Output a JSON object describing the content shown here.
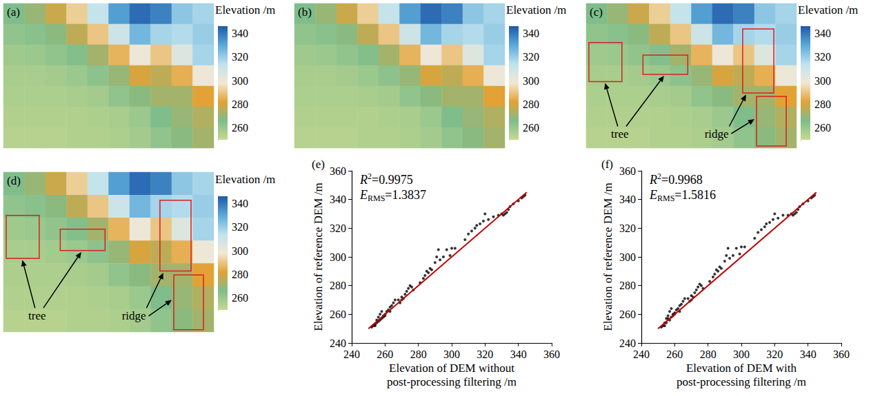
{
  "chart_data": [
    {
      "type": "heatmap",
      "panel": "(a)",
      "tick_labels": false,
      "cells": [
        [
          266,
          270,
          278,
          292,
          312,
          332,
          342,
          338,
          322,
          318
        ],
        [
          262,
          264,
          268,
          276,
          290,
          310,
          326,
          318,
          316,
          320
        ],
        [
          259,
          260,
          262,
          265,
          272,
          286,
          300,
          290,
          305,
          318
        ],
        [
          257,
          257,
          258,
          260,
          263,
          270,
          280,
          276,
          285,
          300
        ],
        [
          256,
          256,
          256,
          257,
          258,
          262,
          268,
          272,
          272,
          282
        ],
        [
          255,
          255,
          255,
          255,
          256,
          257,
          260,
          266,
          270,
          274
        ],
        [
          254,
          254,
          254,
          255,
          255,
          256,
          258,
          262,
          268,
          272
        ]
      ],
      "colorbar": {
        "title": "Elevation /m",
        "range": [
          250,
          346
        ],
        "ticks": [
          260,
          280,
          300,
          320,
          340
        ],
        "colors": [
          "#c8d98f",
          "#7fbd8b",
          "#e2a235",
          "#f2e8d2",
          "#bfe2ee",
          "#5aa9d8",
          "#1e58a8"
        ]
      }
    },
    {
      "type": "heatmap",
      "panel": "(b)",
      "tick_labels": false,
      "cells": [
        [
          266,
          270,
          278,
          292,
          312,
          332,
          342,
          338,
          322,
          318
        ],
        [
          262,
          264,
          268,
          276,
          290,
          310,
          326,
          318,
          316,
          320
        ],
        [
          259,
          260,
          262,
          265,
          272,
          286,
          300,
          290,
          305,
          318
        ],
        [
          257,
          257,
          258,
          260,
          263,
          270,
          280,
          276,
          285,
          300
        ],
        [
          256,
          256,
          256,
          257,
          258,
          262,
          268,
          272,
          272,
          282
        ],
        [
          255,
          255,
          255,
          255,
          256,
          257,
          260,
          266,
          270,
          274
        ],
        [
          254,
          254,
          254,
          255,
          255,
          256,
          258,
          262,
          268,
          272
        ]
      ],
      "colorbar": {
        "title": "Elevation /m",
        "range": [
          250,
          346
        ],
        "ticks": [
          260,
          280,
          300,
          320,
          340
        ],
        "colors": [
          "#c8d98f",
          "#7fbd8b",
          "#e2a235",
          "#f2e8d2",
          "#bfe2ee",
          "#5aa9d8",
          "#1e58a8"
        ]
      }
    },
    {
      "type": "heatmap",
      "panel": "(c)",
      "tick_labels": false,
      "cells": [
        [
          266,
          270,
          278,
          292,
          312,
          332,
          342,
          338,
          322,
          318
        ],
        [
          262,
          264,
          268,
          276,
          290,
          310,
          326,
          318,
          316,
          320
        ],
        [
          259,
          260,
          262,
          265,
          272,
          286,
          300,
          290,
          305,
          318
        ],
        [
          257,
          257,
          258,
          260,
          263,
          270,
          280,
          276,
          285,
          300
        ],
        [
          256,
          256,
          256,
          257,
          258,
          262,
          268,
          272,
          272,
          282
        ],
        [
          255,
          255,
          255,
          255,
          256,
          257,
          260,
          266,
          270,
          274
        ],
        [
          254,
          254,
          254,
          255,
          255,
          256,
          258,
          262,
          268,
          272
        ]
      ],
      "colorbar": {
        "title": "Elevation /m",
        "range": [
          250,
          346
        ],
        "ticks": [
          260,
          280,
          300,
          320,
          340
        ],
        "colors": [
          "#c8d98f",
          "#7fbd8b",
          "#e2a235",
          "#f2e8d2",
          "#bfe2ee",
          "#5aa9d8",
          "#1e58a8"
        ]
      },
      "annotations": [
        {
          "text": "tree"
        },
        {
          "text": "ridge"
        }
      ]
    },
    {
      "type": "heatmap",
      "panel": "(d)",
      "tick_labels": false,
      "cells": [
        [
          266,
          270,
          278,
          292,
          312,
          332,
          342,
          338,
          322,
          318
        ],
        [
          262,
          264,
          268,
          276,
          290,
          310,
          326,
          318,
          316,
          320
        ],
        [
          259,
          260,
          262,
          265,
          272,
          286,
          300,
          290,
          305,
          318
        ],
        [
          257,
          257,
          258,
          260,
          263,
          270,
          280,
          276,
          285,
          300
        ],
        [
          256,
          256,
          256,
          257,
          258,
          262,
          268,
          272,
          272,
          282
        ],
        [
          255,
          255,
          255,
          255,
          256,
          257,
          260,
          266,
          270,
          274
        ],
        [
          254,
          254,
          254,
          255,
          255,
          256,
          258,
          262,
          268,
          272
        ]
      ],
      "colorbar": {
        "title": "Elevation /m",
        "range": [
          250,
          346
        ],
        "ticks": [
          260,
          280,
          300,
          320,
          340
        ],
        "colors": [
          "#c8d98f",
          "#7fbd8b",
          "#e2a235",
          "#f2e8d2",
          "#bfe2ee",
          "#5aa9d8",
          "#1e58a8"
        ]
      },
      "annotations": [
        {
          "text": "tree"
        },
        {
          "text": "ridge"
        }
      ]
    },
    {
      "type": "scatter",
      "panel": "(e)",
      "color": "#000000",
      "grid": false,
      "x_label": "Elevation of DEM without post-processing filtering /m",
      "y_label": "Elevation of reference DEM /m",
      "xlim": [
        240,
        360
      ],
      "xticks": [
        240,
        260,
        280,
        300,
        320,
        340,
        360
      ],
      "ylim": [
        240,
        360
      ],
      "yticks": [
        240,
        260,
        280,
        300,
        320,
        340,
        360
      ],
      "annotations": [
        {
          "text": "R",
          "sup": "2",
          "after": "=0.9975"
        },
        {
          "text": "E",
          "sub": "RMS",
          "after": "=1.3837"
        }
      ],
      "fit_line": {
        "x": [
          250,
          345
        ],
        "y": [
          250,
          345
        ],
        "color": "#c00000"
      },
      "x": [
        252,
        253,
        254,
        255,
        255,
        256,
        257,
        258,
        256,
        254,
        257,
        258,
        259,
        260,
        261,
        262,
        263,
        259,
        260,
        263,
        264,
        265,
        266,
        268,
        270,
        270,
        272,
        273,
        274,
        275,
        276,
        271,
        269,
        277,
        281,
        283,
        284,
        285,
        286,
        287,
        288,
        290,
        291,
        292,
        293,
        295,
        297,
        299,
        300,
        302,
        308,
        310,
        312,
        314,
        315,
        317,
        319,
        320,
        322,
        325,
        328,
        330,
        331,
        332,
        333,
        334,
        335,
        337,
        340,
        342,
        343,
        344
      ],
      "y": [
        251,
        252,
        253,
        254,
        256,
        258,
        260,
        262,
        255,
        252,
        256,
        257,
        259,
        260,
        262,
        263,
        262,
        258,
        259,
        265,
        266,
        268,
        270,
        270,
        270,
        272,
        274,
        276,
        278,
        280,
        279,
        271,
        268,
        277,
        282,
        285,
        287,
        290,
        289,
        292,
        291,
        296,
        300,
        305,
        298,
        300,
        305,
        301,
        306,
        306,
        312,
        316,
        318,
        320,
        322,
        323,
        325,
        330,
        326,
        328,
        329,
        330,
        329,
        330,
        331,
        333,
        335,
        337,
        339,
        341,
        342,
        343
      ]
    },
    {
      "type": "scatter",
      "panel": "(f)",
      "color": "#000000",
      "grid": false,
      "x_label": "Elevation of DEM with post-processing filtering /m",
      "y_label": "Elevation of reference DEM /m",
      "xlim": [
        240,
        360
      ],
      "xticks": [
        240,
        260,
        280,
        300,
        320,
        340,
        360
      ],
      "ylim": [
        240,
        360
      ],
      "yticks": [
        240,
        260,
        280,
        300,
        320,
        340,
        360
      ],
      "annotations": [
        {
          "text": "R",
          "sup": "2",
          "after": "=0.9968"
        },
        {
          "text": "E",
          "sub": "RMS",
          "after": "=1.5816"
        }
      ],
      "fit_line": {
        "x": [
          250,
          345
        ],
        "y": [
          250,
          345
        ],
        "color": "#c00000"
      },
      "x": [
        252,
        253,
        254,
        255,
        255,
        256,
        257,
        258,
        256,
        254,
        257,
        258,
        259,
        260,
        261,
        262,
        263,
        259,
        260,
        263,
        264,
        265,
        266,
        268,
        270,
        270,
        272,
        273,
        274,
        275,
        276,
        271,
        269,
        277,
        281,
        283,
        284,
        285,
        286,
        287,
        288,
        290,
        291,
        292,
        293,
        295,
        297,
        299,
        300,
        302,
        308,
        310,
        312,
        314,
        315,
        317,
        319,
        320,
        322,
        325,
        328,
        330,
        331,
        332,
        333,
        334,
        335,
        337,
        340,
        342,
        343,
        344
      ],
      "y": [
        251,
        252,
        254,
        254,
        257,
        259,
        262,
        264,
        257,
        252,
        256,
        258,
        260,
        261,
        263,
        264,
        262,
        259,
        260,
        266,
        267,
        269,
        271,
        271,
        270,
        273,
        275,
        277,
        279,
        281,
        280,
        272,
        269,
        278,
        283,
        286,
        288,
        291,
        290,
        293,
        292,
        297,
        301,
        306,
        299,
        301,
        306,
        302,
        307,
        307,
        313,
        317,
        319,
        321,
        323,
        324,
        326,
        330,
        327,
        329,
        329,
        330,
        329,
        330,
        331,
        333,
        335,
        337,
        339,
        341,
        342,
        343
      ]
    }
  ]
}
